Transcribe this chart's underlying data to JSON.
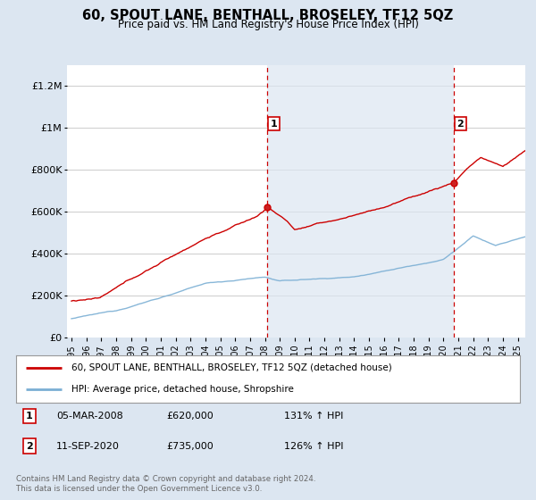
{
  "title": "60, SPOUT LANE, BENTHALL, BROSELEY, TF12 5QZ",
  "subtitle": "Price paid vs. HM Land Registry's House Price Index (HPI)",
  "ylabel_ticks": [
    "£0",
    "£200K",
    "£400K",
    "£600K",
    "£800K",
    "£1M",
    "£1.2M"
  ],
  "ytick_values": [
    0,
    200000,
    400000,
    600000,
    800000,
    1000000,
    1200000
  ],
  "ylim": [
    0,
    1300000
  ],
  "xlim_start": 1994.7,
  "xlim_end": 2025.5,
  "sale1_x": 2008.17,
  "sale1_y": 620000,
  "sale1_label": "1",
  "sale1_date": "05-MAR-2008",
  "sale1_price": "£620,000",
  "sale1_hpi": "131% ↑ HPI",
  "sale2_x": 2020.7,
  "sale2_y": 735000,
  "sale2_label": "2",
  "sale2_date": "11-SEP-2020",
  "sale2_price": "£735,000",
  "sale2_hpi": "126% ↑ HPI",
  "legend_line1": "60, SPOUT LANE, BENTHALL, BROSELEY, TF12 5QZ (detached house)",
  "legend_line2": "HPI: Average price, detached house, Shropshire",
  "footer1": "Contains HM Land Registry data © Crown copyright and database right 2024.",
  "footer2": "This data is licensed under the Open Government Licence v3.0.",
  "property_color": "#cc0000",
  "hpi_color": "#7bafd4",
  "background_color": "#dce6f1",
  "plot_bg_color": "#ffffff",
  "shade_color": "#dce6f1",
  "grid_color": "#cccccc",
  "vline_color": "#cc0000"
}
